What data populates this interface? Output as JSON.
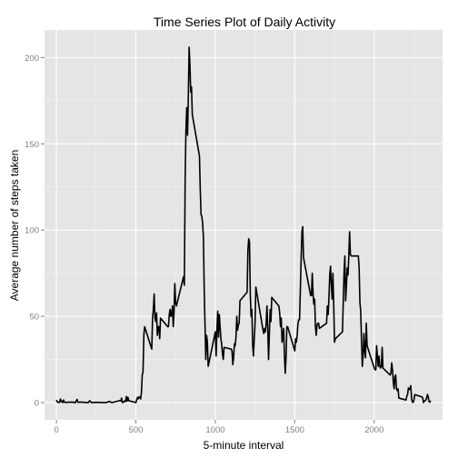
{
  "chart_data": {
    "type": "line",
    "title": "Time Series Plot of Daily Activity",
    "xlabel": "5-minute interval",
    "ylabel": "Average number of steps taken",
    "xlim": [
      -75,
      2430
    ],
    "ylim": [
      -10,
      216
    ],
    "x_ticks": [
      0,
      500,
      1000,
      1500,
      2000
    ],
    "y_ticks": [
      0,
      50,
      100,
      150,
      200
    ],
    "x_tick_labels": [
      "0",
      "500",
      "1000",
      "1500",
      "2000"
    ],
    "y_tick_labels": [
      "0",
      "50",
      "100",
      "150",
      "200"
    ],
    "grid": true,
    "panel_background": "#e5e5e5",
    "line_color": "#000000",
    "series": [
      {
        "points": [
          [
            0,
            1.5
          ],
          [
            5,
            0.4
          ],
          [
            10,
            0.2
          ],
          [
            15,
            0.2
          ],
          [
            20,
            0.1
          ],
          [
            25,
            2.1
          ],
          [
            30,
            0.5
          ],
          [
            35,
            0.9
          ],
          [
            40,
            0
          ],
          [
            45,
            1.5
          ],
          [
            50,
            0.3
          ],
          [
            55,
            0.1
          ],
          [
            100,
            0.3
          ],
          [
            110,
            0.1
          ],
          [
            120,
            0
          ],
          [
            125,
            1.1
          ],
          [
            130,
            1.8
          ],
          [
            135,
            0.2
          ],
          [
            140,
            0.2
          ],
          [
            150,
            0.3
          ],
          [
            200,
            0
          ],
          [
            210,
            1.1
          ],
          [
            220,
            0
          ],
          [
            250,
            0.2
          ],
          [
            300,
            0
          ],
          [
            310,
            0
          ],
          [
            320,
            0.2
          ],
          [
            330,
            0.6
          ],
          [
            335,
            0.5
          ],
          [
            340,
            0.5
          ],
          [
            345,
            0.1
          ],
          [
            350,
            0
          ],
          [
            400,
            1.2
          ],
          [
            405,
            0.9
          ],
          [
            410,
            2.6
          ],
          [
            415,
            0
          ],
          [
            420,
            0.3
          ],
          [
            425,
            0.3
          ],
          [
            430,
            1.1
          ],
          [
            435,
            0.7
          ],
          [
            440,
            3.5
          ],
          [
            445,
            0.8
          ],
          [
            450,
            3.1
          ],
          [
            455,
            1.1
          ],
          [
            500,
            0
          ],
          [
            505,
            1.6
          ],
          [
            510,
            3
          ],
          [
            515,
            2.2
          ],
          [
            520,
            3.3
          ],
          [
            525,
            3
          ],
          [
            530,
            2.1
          ],
          [
            535,
            6
          ],
          [
            540,
            16
          ],
          [
            545,
            18
          ],
          [
            550,
            39
          ],
          [
            555,
            44
          ],
          [
            600,
            31
          ],
          [
            605,
            49
          ],
          [
            610,
            54
          ],
          [
            615,
            63
          ],
          [
            620,
            49
          ],
          [
            625,
            47
          ],
          [
            630,
            52
          ],
          [
            635,
            39
          ],
          [
            640,
            44
          ],
          [
            645,
            44
          ],
          [
            650,
            37
          ],
          [
            655,
            49
          ],
          [
            700,
            44
          ],
          [
            705,
            44
          ],
          [
            710,
            51
          ],
          [
            715,
            54
          ],
          [
            720,
            50
          ],
          [
            725,
            51
          ],
          [
            730,
            56
          ],
          [
            735,
            44
          ],
          [
            740,
            52
          ],
          [
            745,
            69
          ],
          [
            750,
            58
          ],
          [
            755,
            56
          ],
          [
            800,
            73
          ],
          [
            805,
            68
          ],
          [
            810,
            129
          ],
          [
            815,
            158
          ],
          [
            820,
            171
          ],
          [
            825,
            155
          ],
          [
            830,
            177
          ],
          [
            835,
            206
          ],
          [
            840,
            196
          ],
          [
            845,
            180
          ],
          [
            850,
            183
          ],
          [
            855,
            167
          ],
          [
            900,
            143
          ],
          [
            905,
            124
          ],
          [
            910,
            109
          ],
          [
            915,
            108
          ],
          [
            920,
            104
          ],
          [
            925,
            96
          ],
          [
            930,
            66
          ],
          [
            935,
            45
          ],
          [
            940,
            25
          ],
          [
            945,
            39
          ],
          [
            950,
            35
          ],
          [
            955,
            21
          ],
          [
            1000,
            41
          ],
          [
            1005,
            27
          ],
          [
            1010,
            42
          ],
          [
            1015,
            53
          ],
          [
            1020,
            38
          ],
          [
            1025,
            51
          ],
          [
            1030,
            44
          ],
          [
            1035,
            37
          ],
          [
            1040,
            34
          ],
          [
            1045,
            28
          ],
          [
            1050,
            25
          ],
          [
            1055,
            32
          ],
          [
            1100,
            31
          ],
          [
            1105,
            30
          ],
          [
            1110,
            22
          ],
          [
            1115,
            26
          ],
          [
            1120,
            34
          ],
          [
            1125,
            33
          ],
          [
            1130,
            38
          ],
          [
            1135,
            50
          ],
          [
            1140,
            42
          ],
          [
            1145,
            45
          ],
          [
            1150,
            46
          ],
          [
            1155,
            59
          ],
          [
            1200,
            64
          ],
          [
            1205,
            88
          ],
          [
            1210,
            95
          ],
          [
            1215,
            93
          ],
          [
            1220,
            63
          ],
          [
            1225,
            50
          ],
          [
            1230,
            54
          ],
          [
            1235,
            33
          ],
          [
            1240,
            27
          ],
          [
            1245,
            37
          ],
          [
            1250,
            46
          ],
          [
            1255,
            67
          ],
          [
            1300,
            42
          ],
          [
            1305,
            40
          ],
          [
            1310,
            43
          ],
          [
            1315,
            41
          ],
          [
            1320,
            46
          ],
          [
            1325,
            56
          ],
          [
            1330,
            43
          ],
          [
            1335,
            25
          ],
          [
            1340,
            40
          ],
          [
            1345,
            54
          ],
          [
            1350,
            47
          ],
          [
            1355,
            61
          ],
          [
            1400,
            56
          ],
          [
            1405,
            52
          ],
          [
            1410,
            44
          ],
          [
            1415,
            49
          ],
          [
            1420,
            35
          ],
          [
            1425,
            38
          ],
          [
            1430,
            43
          ],
          [
            1435,
            27
          ],
          [
            1440,
            17
          ],
          [
            1445,
            26
          ],
          [
            1450,
            44
          ],
          [
            1455,
            44
          ],
          [
            1500,
            30
          ],
          [
            1505,
            37
          ],
          [
            1510,
            35
          ],
          [
            1515,
            39
          ],
          [
            1520,
            46
          ],
          [
            1525,
            48
          ],
          [
            1530,
            48
          ],
          [
            1535,
            65
          ],
          [
            1540,
            83
          ],
          [
            1545,
            99
          ],
          [
            1550,
            102
          ],
          [
            1555,
            84
          ],
          [
            1600,
            62
          ],
          [
            1605,
            62
          ],
          [
            1610,
            75
          ],
          [
            1615,
            63
          ],
          [
            1620,
            57
          ],
          [
            1625,
            60
          ],
          [
            1630,
            44
          ],
          [
            1635,
            39
          ],
          [
            1640,
            45
          ],
          [
            1645,
            46
          ],
          [
            1650,
            46
          ],
          [
            1655,
            43
          ],
          [
            1700,
            46
          ],
          [
            1705,
            56
          ],
          [
            1710,
            51
          ],
          [
            1715,
            61
          ],
          [
            1720,
            74
          ],
          [
            1725,
            79
          ],
          [
            1730,
            68
          ],
          [
            1735,
            60
          ],
          [
            1740,
            75
          ],
          [
            1745,
            57
          ],
          [
            1750,
            35
          ],
          [
            1755,
            37
          ],
          [
            1800,
            41
          ],
          [
            1805,
            58
          ],
          [
            1810,
            75
          ],
          [
            1815,
            85
          ],
          [
            1820,
            59
          ],
          [
            1825,
            68
          ],
          [
            1830,
            78
          ],
          [
            1835,
            74
          ],
          [
            1840,
            85
          ],
          [
            1845,
            99
          ],
          [
            1850,
            86
          ],
          [
            1855,
            85
          ],
          [
            1900,
            85
          ],
          [
            1905,
            78
          ],
          [
            1910,
            58
          ],
          [
            1915,
            53
          ],
          [
            1920,
            36
          ],
          [
            1925,
            21
          ],
          [
            1930,
            27
          ],
          [
            1935,
            40
          ],
          [
            1940,
            30
          ],
          [
            1945,
            26
          ],
          [
            1950,
            46
          ],
          [
            1955,
            33
          ],
          [
            2000,
            20
          ],
          [
            2005,
            19
          ],
          [
            2010,
            19
          ],
          [
            2015,
            33
          ],
          [
            2020,
            27
          ],
          [
            2025,
            21
          ],
          [
            2030,
            27
          ],
          [
            2035,
            21
          ],
          [
            2040,
            20
          ],
          [
            2045,
            21
          ],
          [
            2050,
            32
          ],
          [
            2055,
            20
          ],
          [
            2100,
            16
          ],
          [
            2105,
            17
          ],
          [
            2110,
            23
          ],
          [
            2115,
            19
          ],
          [
            2120,
            12
          ],
          [
            2125,
            8
          ],
          [
            2130,
            15
          ],
          [
            2135,
            16
          ],
          [
            2140,
            8
          ],
          [
            2145,
            7
          ],
          [
            2150,
            8
          ],
          [
            2155,
            2.6
          ],
          [
            2200,
            1.5
          ],
          [
            2205,
            3.7
          ],
          [
            2210,
            4.8
          ],
          [
            2215,
            8.5
          ],
          [
            2220,
            7.5
          ],
          [
            2225,
            8.1
          ],
          [
            2230,
            9.8
          ],
          [
            2235,
            2.2
          ],
          [
            2240,
            0.3
          ],
          [
            2245,
            0.1
          ],
          [
            2250,
            1.6
          ],
          [
            2255,
            4.6
          ],
          [
            2300,
            3.3
          ],
          [
            2305,
            2.8
          ],
          [
            2310,
            0
          ],
          [
            2315,
            0.8
          ],
          [
            2320,
            1
          ],
          [
            2325,
            1.6
          ],
          [
            2330,
            2.6
          ],
          [
            2335,
            4.7
          ],
          [
            2340,
            3.3
          ],
          [
            2345,
            0.6
          ],
          [
            2350,
            0.2
          ],
          [
            2355,
            1.1
          ]
        ]
      }
    ]
  }
}
